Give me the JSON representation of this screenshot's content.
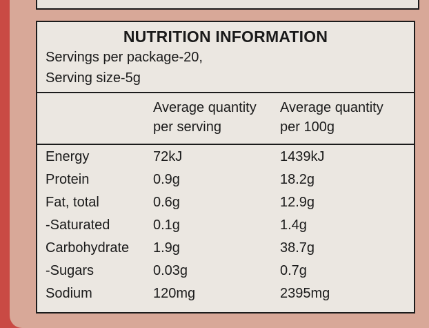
{
  "title": "NUTRITION INFORMATION",
  "servings": "Servings per package-20,",
  "serving_size": "Serving size-5g",
  "columns": {
    "per_serving": [
      "Average quantity",
      "per serving"
    ],
    "per_100g": [
      "Average quantity",
      "per 100g"
    ]
  },
  "rows": [
    {
      "name": "Energy",
      "per_serving": "72kJ",
      "per_100g": "1439kJ"
    },
    {
      "name": "Protein",
      "per_serving": "0.9g",
      "per_100g": "18.2g"
    },
    {
      "name": "Fat, total",
      "per_serving": "0.6g",
      "per_100g": "12.9g"
    },
    {
      "name": "-Saturated",
      "per_serving": "0.1g",
      "per_100g": "1.4g"
    },
    {
      "name": "Carbohydrate",
      "per_serving": "1.9g",
      "per_100g": "38.7g"
    },
    {
      "name": "-Sugars",
      "per_serving": "0.03g",
      "per_100g": "0.7g"
    },
    {
      "name": "Sodium",
      "per_serving": "120mg",
      "per_100g": "2395mg"
    }
  ]
}
